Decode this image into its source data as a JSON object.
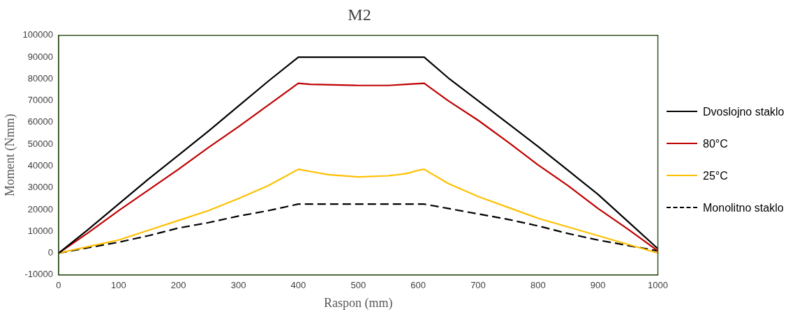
{
  "chart_data": {
    "type": "line",
    "title": "M2",
    "xlabel": "Raspon (mm)",
    "ylabel": "Moment (Nmm)",
    "xlim": [
      0,
      1000
    ],
    "xticks": [
      0,
      100,
      200,
      300,
      400,
      500,
      600,
      700,
      800,
      900,
      1000
    ],
    "ylim": [
      -10000,
      100000
    ],
    "yticks": [
      -10000,
      0,
      10000,
      20000,
      30000,
      40000,
      50000,
      60000,
      70000,
      80000,
      90000,
      100000
    ],
    "grid": false,
    "legend": "right",
    "marker": "none",
    "series": [
      {
        "name": "Dvoslojno staklo",
        "color": "#000000",
        "line_style": "solid",
        "x": [
          0,
          50,
          100,
          150,
          200,
          250,
          300,
          350,
          400,
          450,
          500,
          550,
          610,
          650,
          700,
          750,
          800,
          850,
          900,
          950,
          1000
        ],
        "values": [
          0,
          11000,
          22500,
          34000,
          45000,
          56000,
          67500,
          79000,
          90000,
          90000,
          90000,
          90000,
          90000,
          80500,
          70000,
          59500,
          49000,
          38000,
          27000,
          14500,
          2000
        ]
      },
      {
        "name": "80°C",
        "color": "#c00000",
        "line_style": "solid",
        "x": [
          0,
          50,
          100,
          150,
          200,
          250,
          300,
          350,
          400,
          420,
          500,
          550,
          580,
          610,
          650,
          700,
          750,
          800,
          850,
          900,
          950,
          1000
        ],
        "values": [
          0,
          9500,
          19500,
          29000,
          38500,
          48500,
          58000,
          68000,
          78000,
          77500,
          77000,
          77000,
          77500,
          78000,
          70000,
          61000,
          51000,
          40500,
          31000,
          20500,
          11000,
          1000
        ]
      },
      {
        "name": "25°C",
        "color": "#ffc000",
        "line_style": "solid",
        "x": [
          0,
          50,
          100,
          150,
          200,
          250,
          300,
          350,
          400,
          420,
          450,
          500,
          550,
          580,
          600,
          610,
          650,
          700,
          750,
          800,
          850,
          900,
          950,
          1000
        ],
        "values": [
          0,
          3000,
          6000,
          10500,
          15000,
          19500,
          25000,
          31000,
          38500,
          37500,
          36000,
          35000,
          35500,
          36500,
          38000,
          38500,
          32000,
          26000,
          21000,
          16000,
          12000,
          8000,
          4000,
          0
        ]
      },
      {
        "name": "Monolitno staklo",
        "color": "#000000",
        "line_style": "dashed",
        "x": [
          0,
          50,
          100,
          150,
          200,
          250,
          300,
          350,
          400,
          500,
          610,
          650,
          700,
          750,
          800,
          850,
          900,
          950,
          1000
        ],
        "values": [
          0,
          2500,
          5000,
          8000,
          11500,
          14000,
          17000,
          19500,
          22500,
          22500,
          22500,
          20500,
          18000,
          15500,
          12500,
          9000,
          6000,
          3500,
          1000
        ]
      }
    ]
  }
}
